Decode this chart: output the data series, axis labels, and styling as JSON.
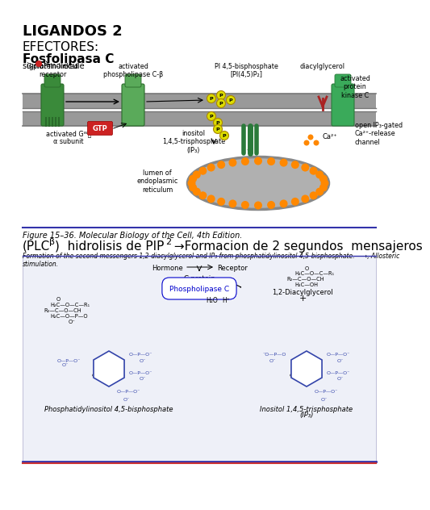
{
  "bg_color": "#ffffff",
  "text_color": "#000000",
  "title": "LIGANDOS 2",
  "subtitle1": "EFECTORES:",
  "subtitle2": "Fosfolipasa C",
  "signal_molecule": "signal molecule",
  "label_gprotein": "G-protein-linked\nreceptor",
  "label_phospholipase": "activated\nphospholipase C-β",
  "label_pi45": "PI 4,5-bisphosphate\n[PI(4,5)P₂]",
  "label_dag": "diacylglycerol",
  "label_gtp": "GTP",
  "label_activated_gq": "activated Gᵂᵱ\nα subunit",
  "label_inositol": "inositol\n1,4,5-trisphosphate\n(IP₃)",
  "label_activated_pkc": "activated\nprotein\nkinase C",
  "label_ca2": "Ca²⁺",
  "label_ip3gated": "open IP₃-gated\nCa²⁺-release\nchannel",
  "label_lumen": "lumen of\nendoplasmic\nreticulum",
  "fig_caption_italic": "Figure 15–36. Molecular Biology of the Cell, 4th Edition.",
  "fig_caption_main": "(PLCβ)  hidrolisis de PIP₂ →Formacion de 2 segundos  mensajeros",
  "fig_caption_sub_plc": "β",
  "fig_caption_sub_pip": "2",
  "fig_desc": "Formation of the second messengers 1,2-diacylglycerol and IP₃ from phosphatidylinositol 4,5-bisphosphate.  ⟶, Allosteric\nstimulation.",
  "chem_hormone": "Hormone",
  "chem_receptor": "Receptor",
  "chem_gprotein": "G-protein",
  "chem_plc": "Phospholipase C",
  "chem_h2o": "H₂O",
  "chem_hplus": "H⁺",
  "chem_dag_label": "1,2-Diacylglycerol",
  "chem_left_label": "Phosphatidylinositol 4,5-bisphosphate",
  "chem_right_label": "Inositol 1,4,5-trisphosphate",
  "chem_right_label2": "(IP₃)",
  "membrane_color": "#999999",
  "membrane_dark": "#777777",
  "gtp_bg": "#cc2222",
  "gtp_text": "#ffffff",
  "receptor_green": "#3a8a3a",
  "receptor_dark_green": "#2a6a2a",
  "p_circle_fill": "#dddd00",
  "p_circle_edge": "#aa8800",
  "p_text": "#000000",
  "er_fill": "#b0b0b0",
  "er_edge": "#888888",
  "orange_dot": "#ff8800",
  "sep_line_color": "#3333aa",
  "sep_line_color2": "#cc3333",
  "chem_bg": "#eef0f8",
  "chem_blue": "#0000cc",
  "chem_struct_color": "#3344aa",
  "title_fs": 13,
  "subtitle1_fs": 11,
  "subtitle2_fs": 11,
  "signal_fs": 7,
  "label_fs": 5.8,
  "gtp_fs": 6,
  "caption_italic_fs": 7,
  "caption_main_fs": 11,
  "desc_fs": 5.5,
  "chem_fs": 6,
  "chem_struct_fs": 4.8,
  "chem_label_fs": 6
}
